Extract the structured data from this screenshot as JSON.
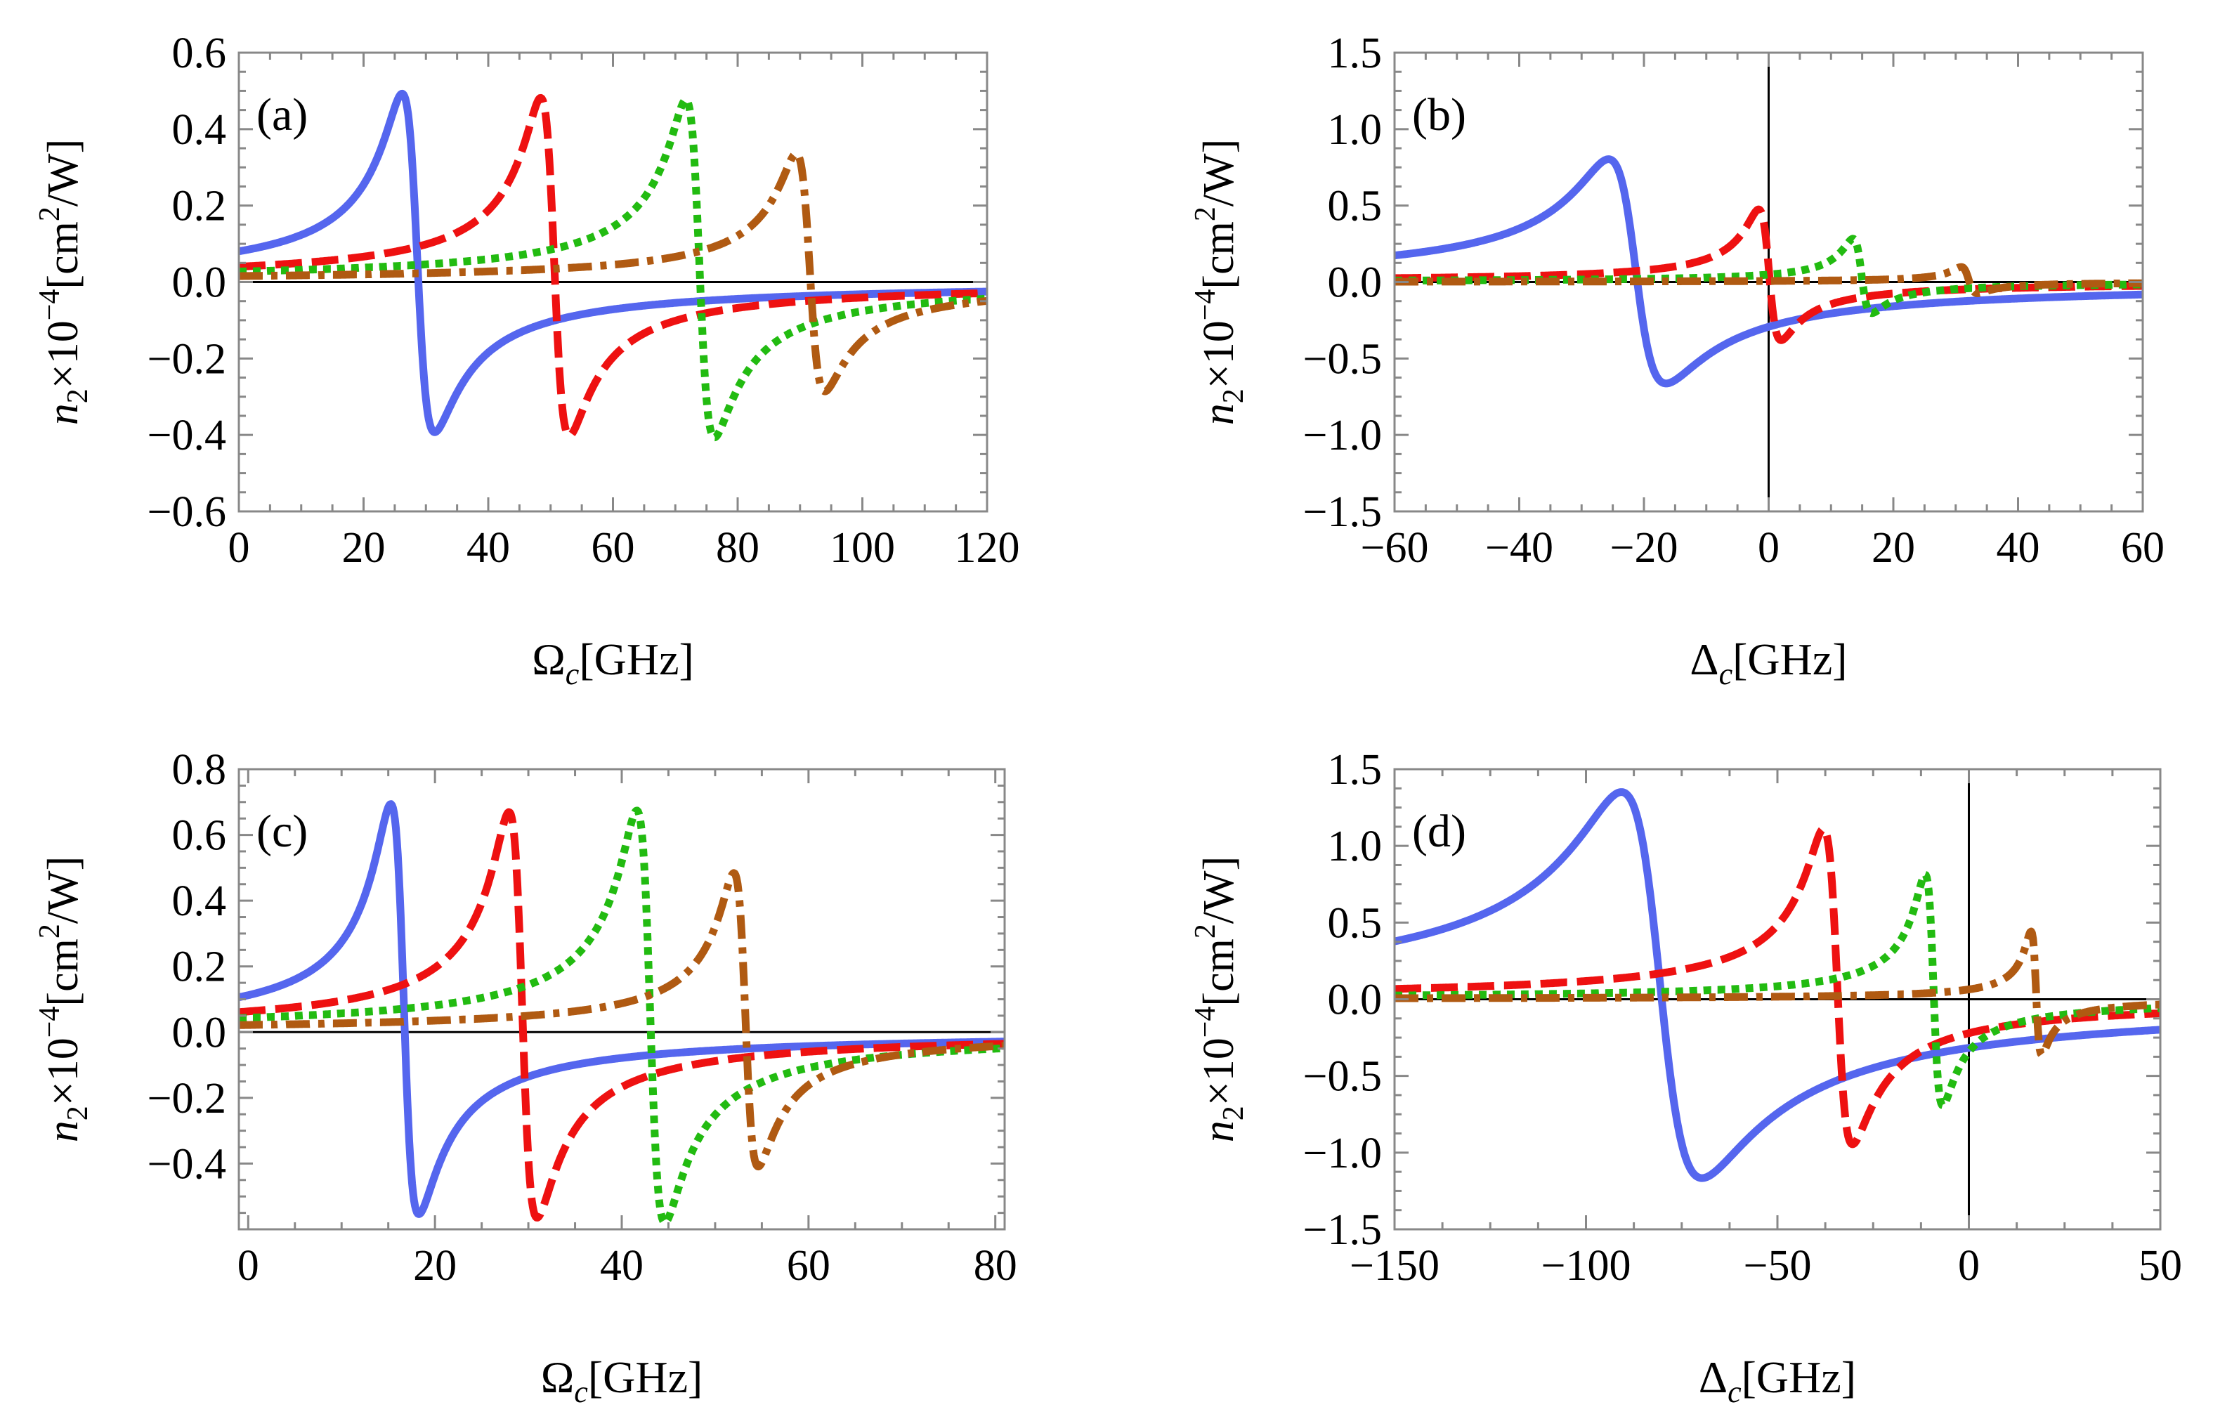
{
  "figure": {
    "colors": {
      "blue": "#5566ee",
      "red": "#ee1111",
      "green": "#22bb11",
      "brown": "#b05a12",
      "frame": "#888888",
      "zero_line": "#000000"
    },
    "series_styles": [
      {
        "name": "blue-solid",
        "color_key": "blue",
        "dash": "solid"
      },
      {
        "name": "red-dashed",
        "color_key": "red",
        "dash": "dashed"
      },
      {
        "name": "green-dotted",
        "color_key": "green",
        "dash": "dotted"
      },
      {
        "name": "brown-dashdot",
        "color_key": "brown",
        "dash": "dashdot"
      }
    ]
  },
  "chart_data": [
    {
      "panel": "(a)",
      "type": "line",
      "xlabel": {
        "symbol": "Ω",
        "sub": "c",
        "unit": "[GHz]"
      },
      "ylabel": {
        "base": "n",
        "sub": "2",
        "mult": "×10",
        "exp": "−4",
        "open": "[cm",
        "exp2": "2",
        "close": "/W]"
      },
      "xlim": [
        0,
        120
      ],
      "ylim": [
        -0.6,
        0.6
      ],
      "xticks": [
        0,
        20,
        40,
        60,
        80,
        100,
        120
      ],
      "xtick_labels": [
        "0",
        "20",
        "40",
        "60",
        "80",
        "100",
        "120"
      ],
      "yticks": [
        -0.6,
        -0.4,
        -0.2,
        0.0,
        0.2,
        0.4,
        0.6
      ],
      "ytick_labels": [
        "−0.6",
        "−0.4",
        "−0.2",
        "0.0",
        "0.2",
        "0.4",
        "0.6"
      ],
      "vline_at_zero": false,
      "series": [
        {
          "name": "blue-solid",
          "center": 28.5,
          "width": 2.6,
          "peak": 0.54,
          "trough": -0.34,
          "baseline": 0.0
        },
        {
          "name": "red-dashed",
          "center": 50.5,
          "width": 2.3,
          "peak": 0.52,
          "trough": -0.36,
          "baseline": 0.0
        },
        {
          "name": "green-dotted",
          "center": 73.8,
          "width": 2.3,
          "peak": 0.51,
          "trough": -0.37,
          "baseline": 0.0
        },
        {
          "name": "brown-dashdot",
          "center": 91.5,
          "width": 2.3,
          "peak": 0.36,
          "trough": -0.26,
          "baseline": 0.0
        }
      ]
    },
    {
      "panel": "(b)",
      "type": "line",
      "xlabel": {
        "symbol": "Δ",
        "sub": "c",
        "unit": "[GHz]"
      },
      "ylabel": {
        "base": "n",
        "sub": "2",
        "mult": "×10",
        "exp": "−4",
        "open": "[cm",
        "exp2": "2",
        "close": "/W]"
      },
      "xlim": [
        -60,
        60
      ],
      "ylim": [
        -1.5,
        1.5
      ],
      "xticks": [
        -60,
        -40,
        -20,
        0,
        20,
        40,
        60
      ],
      "xtick_labels": [
        "−60",
        "−40",
        "−20",
        "0",
        "20",
        "40",
        "60"
      ],
      "yticks": [
        -1.5,
        -1.0,
        -0.5,
        0.0,
        0.5,
        1.0,
        1.5
      ],
      "ytick_labels": [
        "−1.5",
        "−1.0",
        "−0.5",
        "0.0",
        "0.5",
        "1.0",
        "1.5"
      ],
      "vline_at_zero": true,
      "series": [
        {
          "name": "blue-solid",
          "center": -21.5,
          "width": 4.6,
          "peak": 0.87,
          "trough": -0.59,
          "baseline": 0.0
        },
        {
          "name": "red-dashed",
          "center": 0.0,
          "width": 1.8,
          "peak": 0.52,
          "trough": -0.33,
          "baseline": 0.0
        },
        {
          "name": "green-dotted",
          "center": 14.8,
          "width": 1.5,
          "peak": 0.32,
          "trough": -0.16,
          "baseline": 0.0
        },
        {
          "name": "brown-dashdot",
          "center": 32.0,
          "width": 1.3,
          "peak": 0.11,
          "trough": -0.06,
          "baseline": 0.0
        }
      ]
    },
    {
      "panel": "(c)",
      "type": "line",
      "xlabel": {
        "symbol": "Ω",
        "sub": "c",
        "unit": "[GHz]"
      },
      "ylabel": {
        "base": "n",
        "sub": "2",
        "mult": "×10",
        "exp": "−4",
        "open": "[cm",
        "exp2": "2",
        "close": "/W]"
      },
      "xlim": [
        -1,
        81
      ],
      "ylim": [
        -0.6,
        0.8
      ],
      "xticks": [
        0,
        20,
        40,
        60,
        80
      ],
      "xtick_labels": [
        "0",
        "20",
        "40",
        "60",
        "80"
      ],
      "yticks": [
        -0.4,
        -0.2,
        0.0,
        0.2,
        0.4,
        0.6,
        0.8
      ],
      "ytick_labels": [
        "−0.4",
        "−0.2",
        "0.0",
        "0.2",
        "0.4",
        "0.6",
        "0.8"
      ],
      "vline_at_zero": false,
      "series": [
        {
          "name": "blue-solid",
          "center": 16.6,
          "width": 1.5,
          "peak": 0.76,
          "trough": -0.48,
          "baseline": 0.0
        },
        {
          "name": "red-dashed",
          "center": 29.3,
          "width": 1.5,
          "peak": 0.72,
          "trough": -0.51,
          "baseline": 0.0
        },
        {
          "name": "green-dotted",
          "center": 43.0,
          "width": 1.5,
          "peak": 0.72,
          "trough": -0.53,
          "baseline": 0.0
        },
        {
          "name": "brown-dashdot",
          "center": 53.2,
          "width": 1.3,
          "peak": 0.52,
          "trough": -0.37,
          "baseline": 0.0
        }
      ]
    },
    {
      "panel": "(d)",
      "type": "line",
      "xlabel": {
        "symbol": "Δ",
        "sub": "c",
        "unit": "[GHz]"
      },
      "ylabel": {
        "base": "n",
        "sub": "2",
        "mult": "×10",
        "exp": "−4",
        "open": "[cm",
        "exp2": "2",
        "close": "/W]"
      },
      "xlim": [
        -150,
        50
      ],
      "ylim": [
        -1.5,
        1.5
      ],
      "xticks": [
        -150,
        -100,
        -50,
        0,
        50
      ],
      "xtick_labels": [
        "−150",
        "−100",
        "−50",
        "0",
        "50"
      ],
      "yticks": [
        -1.5,
        -1.0,
        -0.5,
        0.0,
        0.5,
        1.0,
        1.5
      ],
      "ytick_labels": [
        "−1.5",
        "−1.0",
        "−0.5",
        "0.0",
        "0.5",
        "1.0",
        "1.5"
      ],
      "vline_at_zero": true,
      "series": [
        {
          "name": "blue-solid",
          "center": -81.0,
          "width": 10.5,
          "peak": 1.44,
          "trough": -1.07,
          "baseline": 0.0
        },
        {
          "name": "red-dashed",
          "center": -34.5,
          "width": 3.8,
          "peak": 1.19,
          "trough": -0.86,
          "baseline": 0.0
        },
        {
          "name": "green-dotted",
          "center": -9.3,
          "width": 2.3,
          "peak": 0.87,
          "trough": -0.63,
          "baseline": 0.0
        },
        {
          "name": "brown-dashdot",
          "center": 17.5,
          "width": 1.4,
          "peak": 0.48,
          "trough": -0.32,
          "baseline": 0.0
        }
      ]
    }
  ]
}
